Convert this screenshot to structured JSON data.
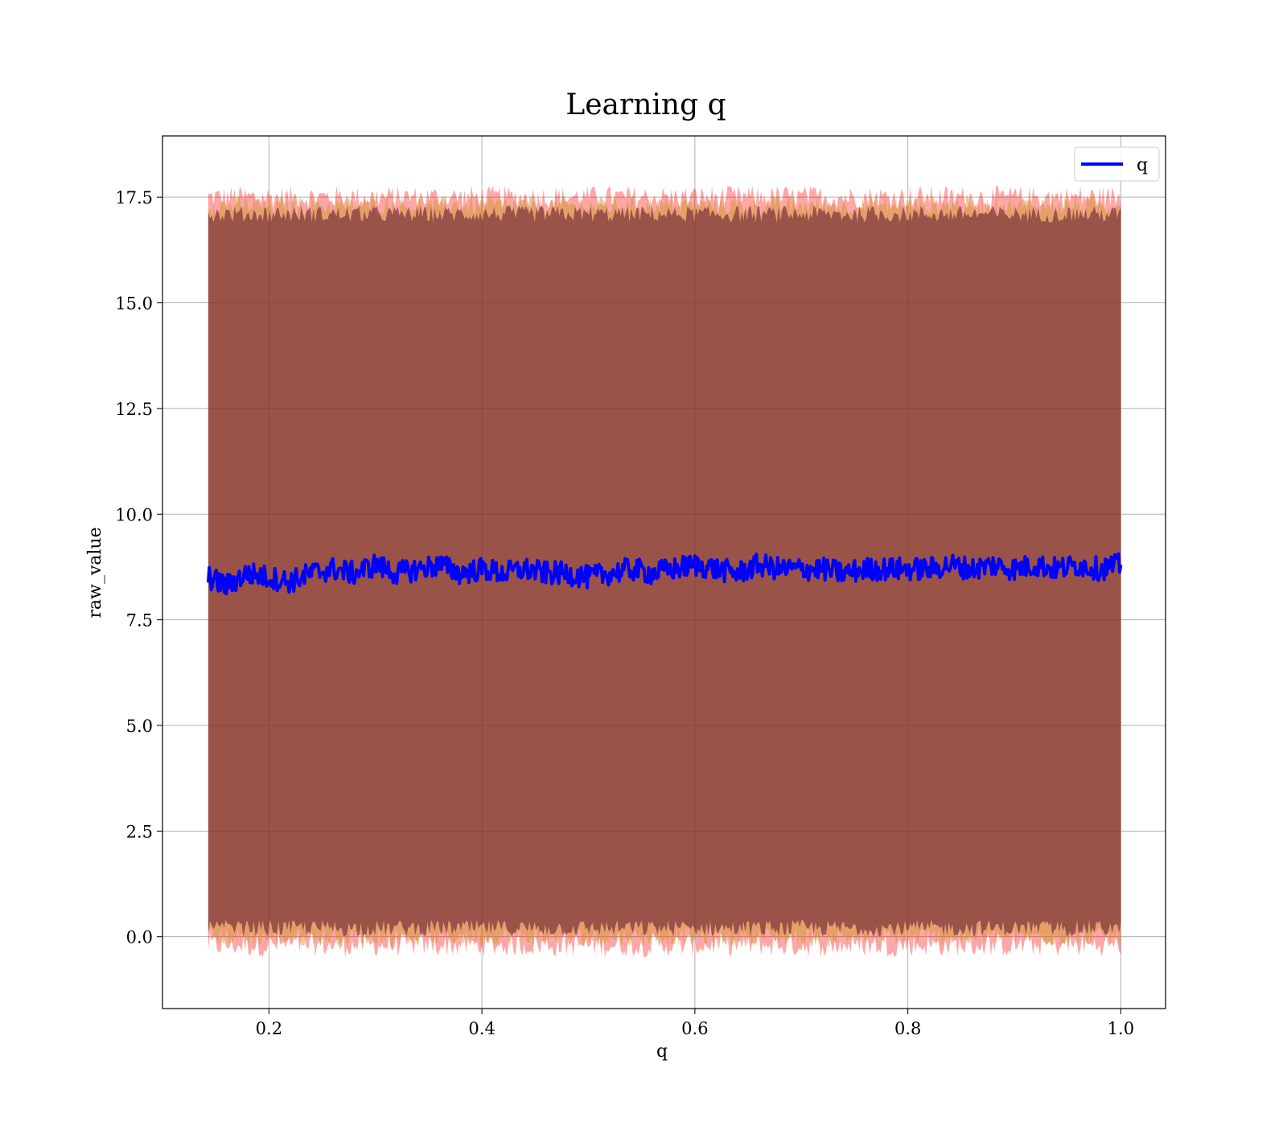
{
  "chart_data": {
    "type": "line",
    "title": "Learning q",
    "xlabel": "q",
    "ylabel": "raw_value",
    "xlim": [
      0.1,
      1.042
    ],
    "ylim": [
      -1.7,
      18.95
    ],
    "x_ticks": [
      0.2,
      0.4,
      0.6,
      0.8,
      1.0
    ],
    "x_tick_labels": [
      "0.2",
      "0.4",
      "0.6",
      "0.8",
      "1.0"
    ],
    "y_ticks": [
      0.0,
      2.5,
      5.0,
      7.5,
      10.0,
      12.5,
      15.0,
      17.5
    ],
    "y_tick_labels": [
      "0.0",
      "2.5",
      "5.0",
      "7.5",
      "10.0",
      "12.5",
      "15.0",
      "17.5"
    ],
    "grid": true,
    "legend": {
      "placement": "top-right",
      "entries": [
        "q"
      ]
    },
    "series": [
      {
        "name": "q",
        "color": "#0000ff",
        "x": [
          0.143,
          0.16,
          0.18,
          0.2,
          0.22,
          0.24,
          0.26,
          0.28,
          0.3,
          0.32,
          0.34,
          0.36,
          0.38,
          0.4,
          0.42,
          0.44,
          0.46,
          0.48,
          0.5,
          0.52,
          0.54,
          0.56,
          0.58,
          0.6,
          0.62,
          0.64,
          0.66,
          0.68,
          0.7,
          0.72,
          0.74,
          0.76,
          0.78,
          0.8,
          0.82,
          0.84,
          0.86,
          0.88,
          0.9,
          0.92,
          0.94,
          0.96,
          0.98,
          1.0
        ],
        "y": [
          8.5,
          8.3,
          8.6,
          8.5,
          8.4,
          8.6,
          8.7,
          8.6,
          8.8,
          8.6,
          8.7,
          8.8,
          8.6,
          8.7,
          8.6,
          8.7,
          8.6,
          8.6,
          8.5,
          8.6,
          8.7,
          8.6,
          8.7,
          8.8,
          8.7,
          8.6,
          8.8,
          8.7,
          8.7,
          8.7,
          8.6,
          8.7,
          8.7,
          8.7,
          8.7,
          8.8,
          8.7,
          8.8,
          8.7,
          8.8,
          8.7,
          8.8,
          8.7,
          8.8
        ]
      }
    ],
    "bands": [
      {
        "upper": 17.5,
        "lower": -0.2,
        "color": "#ff0000",
        "opacity": 0.35
      },
      {
        "upper": 17.3,
        "lower": 0.0,
        "color": "#c8961e",
        "opacity": 0.45
      },
      {
        "upper": 17.1,
        "lower": 0.2,
        "color": "#5a1430",
        "opacity": 0.55
      }
    ]
  }
}
